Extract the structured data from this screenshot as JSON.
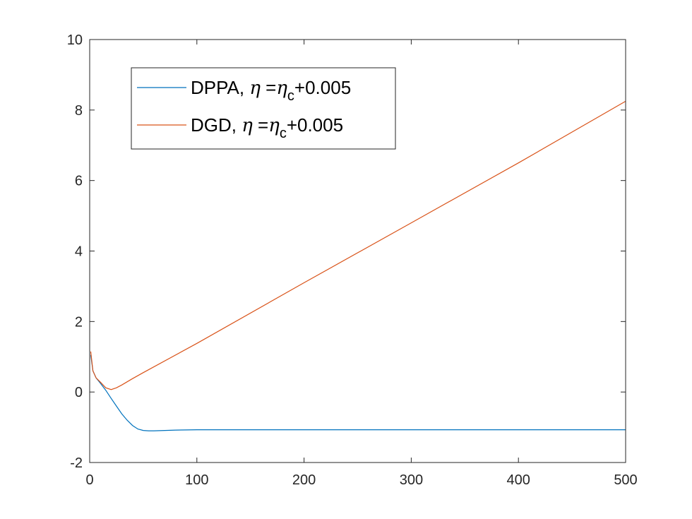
{
  "chart_data": {
    "type": "line",
    "title": "",
    "xlabel": "",
    "ylabel": "",
    "xlim": [
      0,
      500
    ],
    "ylim": [
      -2,
      10
    ],
    "xticks": [
      0,
      100,
      200,
      300,
      400,
      500
    ],
    "yticks": [
      -2,
      0,
      2,
      4,
      6,
      8,
      10
    ],
    "grid": false,
    "legend_position": "top-left",
    "series": [
      {
        "name": "DPPA, η =η_c+0.005",
        "legend": {
          "prefix": "DPPA, ",
          "greek": "η",
          "mid": " =",
          "greek2": "η",
          "sub": "c",
          "suffix": "+0.005"
        },
        "color": "#0072BD",
        "x": [
          1,
          3,
          6,
          10,
          15,
          20,
          25,
          30,
          35,
          40,
          45,
          50,
          55,
          60,
          70,
          80,
          100,
          120,
          150,
          200,
          300,
          400,
          500
        ],
        "y": [
          1.05,
          0.6,
          0.4,
          0.25,
          0.05,
          -0.18,
          -0.4,
          -0.62,
          -0.8,
          -0.95,
          -1.05,
          -1.09,
          -1.1,
          -1.1,
          -1.09,
          -1.08,
          -1.07,
          -1.07,
          -1.07,
          -1.07,
          -1.07,
          -1.07,
          -1.07
        ]
      },
      {
        "name": "DGD, η =η_c+0.005",
        "legend": {
          "prefix": "DGD, ",
          "greek": "η",
          "mid": " =",
          "greek2": "η",
          "sub": "c",
          "suffix": "+0.005"
        },
        "color": "#D95319",
        "x": [
          1,
          3,
          6,
          10,
          15,
          20,
          25,
          30,
          40,
          50,
          100,
          200,
          300,
          400,
          500
        ],
        "y": [
          1.15,
          0.6,
          0.4,
          0.28,
          0.12,
          0.07,
          0.12,
          0.2,
          0.38,
          0.55,
          1.38,
          3.1,
          4.8,
          6.5,
          8.25
        ]
      }
    ]
  },
  "colors": {
    "axis": "#262626",
    "legend_border": "#262626",
    "background": "#ffffff"
  }
}
